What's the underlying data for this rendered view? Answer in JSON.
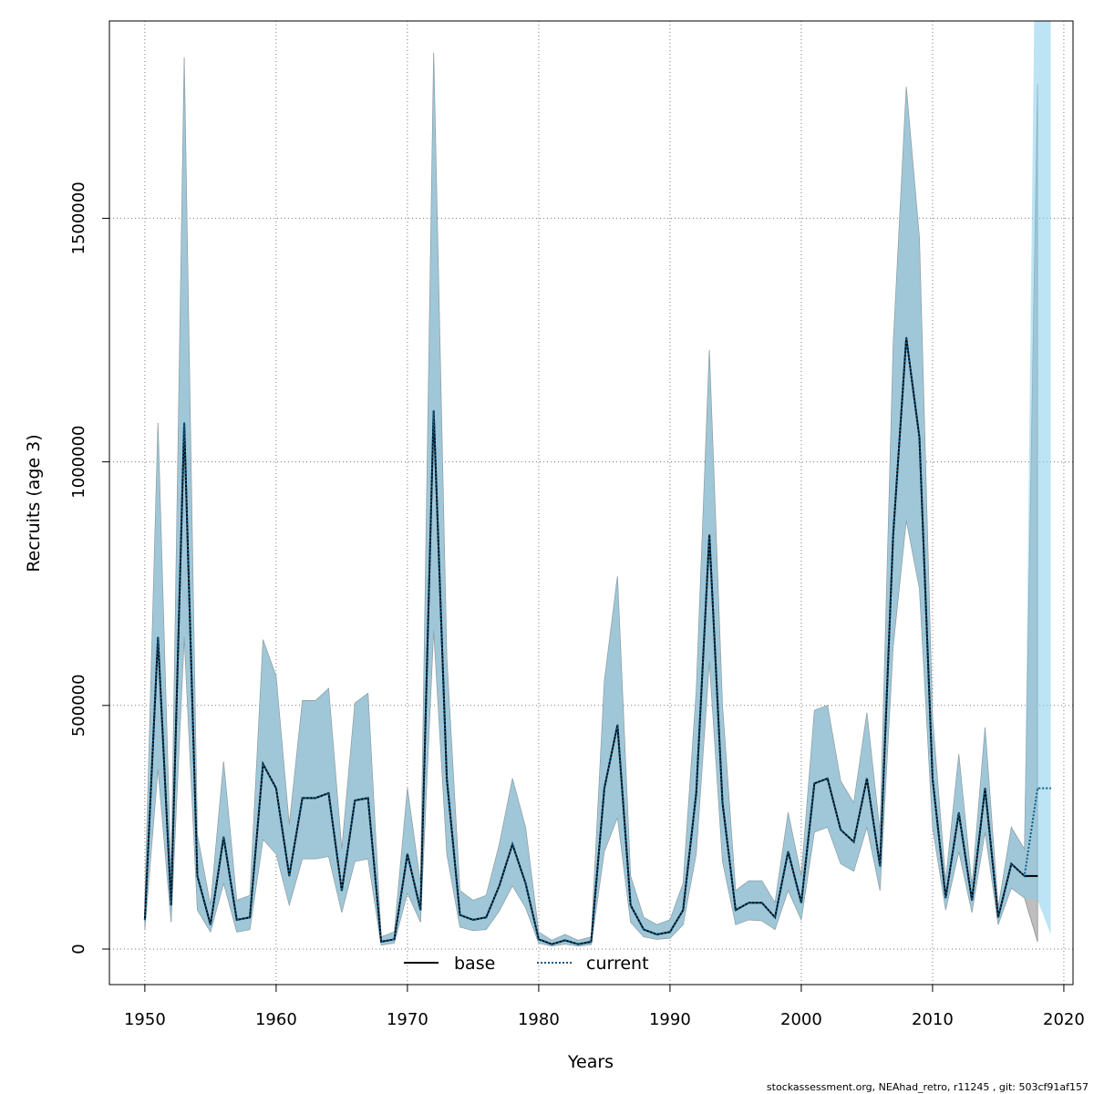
{
  "chart_data": {
    "type": "area",
    "xlabel": "Years",
    "ylabel": "Recruits (age 3)",
    "xlim": [
      1947.3,
      2020.7
    ],
    "ylim": [
      -73000,
      1905000
    ],
    "xticks": [
      1950,
      1960,
      1970,
      1980,
      1990,
      2000,
      2010,
      2020
    ],
    "yticks": [
      0,
      500000,
      1000000,
      1500000
    ],
    "ytick_labels": [
      "0",
      "500000",
      "1000000",
      "1500000"
    ],
    "grid": true,
    "legend_position": "bottom-center",
    "colors": {
      "base_band": "#bebebe",
      "current_band": "#87ceeb",
      "overlap": "#a5c5d4",
      "base_line": "#000000",
      "current_line": "#0b5a8a"
    },
    "series": [
      {
        "name": "base",
        "style": "solid",
        "years": [
          1950,
          1951,
          1952,
          1953,
          1954,
          1955,
          1956,
          1957,
          1958,
          1959,
          1960,
          1961,
          1962,
          1963,
          1964,
          1965,
          1966,
          1967,
          1968,
          1969,
          1970,
          1971,
          1972,
          1973,
          1974,
          1975,
          1976,
          1977,
          1978,
          1979,
          1980,
          1981,
          1982,
          1983,
          1984,
          1985,
          1986,
          1987,
          1988,
          1989,
          1990,
          1991,
          1992,
          1993,
          1994,
          1995,
          1996,
          1997,
          1998,
          1999,
          2000,
          2001,
          2002,
          2003,
          2004,
          2005,
          2006,
          2007,
          2008,
          2009,
          2010,
          2011,
          2012,
          2013,
          2014,
          2015,
          2016,
          2017,
          2018
        ],
        "values": [
          60000,
          640000,
          90000,
          1080000,
          150000,
          50000,
          230000,
          60000,
          65000,
          380000,
          330000,
          150000,
          310000,
          310000,
          320000,
          120000,
          305000,
          310000,
          15000,
          20000,
          195000,
          80000,
          1105000,
          350000,
          70000,
          60000,
          65000,
          130000,
          215000,
          135000,
          20000,
          10000,
          18000,
          10000,
          15000,
          330000,
          460000,
          90000,
          40000,
          30000,
          35000,
          80000,
          320000,
          850000,
          300000,
          80000,
          95000,
          95000,
          65000,
          200000,
          95000,
          340000,
          350000,
          245000,
          220000,
          350000,
          170000,
          850000,
          1255000,
          1050000,
          350000,
          105000,
          280000,
          100000,
          330000,
          65000,
          175000,
          150000,
          150000
        ],
        "lower": [
          40000,
          370000,
          55000,
          640000,
          80000,
          35000,
          135000,
          35000,
          40000,
          225000,
          195000,
          90000,
          185000,
          185000,
          190000,
          75000,
          180000,
          185000,
          8000,
          12000,
          115000,
          55000,
          655000,
          195000,
          45000,
          38000,
          40000,
          78000,
          130000,
          85000,
          12000,
          6000,
          10000,
          6000,
          9000,
          200000,
          270000,
          55000,
          25000,
          20000,
          22000,
          50000,
          195000,
          590000,
          180000,
          50000,
          60000,
          58000,
          40000,
          120000,
          60000,
          240000,
          250000,
          175000,
          160000,
          250000,
          120000,
          620000,
          880000,
          740000,
          250000,
          80000,
          200000,
          75000,
          240000,
          50000,
          125000,
          105000,
          15000
        ],
        "upper": [
          100000,
          1080000,
          150000,
          1830000,
          235000,
          90000,
          385000,
          100000,
          110000,
          635000,
          560000,
          255000,
          510000,
          510000,
          535000,
          205000,
          505000,
          525000,
          25000,
          35000,
          330000,
          135000,
          1840000,
          600000,
          120000,
          100000,
          110000,
          215000,
          350000,
          250000,
          35000,
          18000,
          30000,
          18000,
          25000,
          550000,
          765000,
          150000,
          65000,
          50000,
          60000,
          135000,
          530000,
          1230000,
          500000,
          120000,
          140000,
          140000,
          95000,
          280000,
          150000,
          490000,
          500000,
          345000,
          300000,
          485000,
          240000,
          1240000,
          1770000,
          1460000,
          475000,
          140000,
          400000,
          130000,
          455000,
          85000,
          250000,
          205000,
          1775000
        ]
      },
      {
        "name": "current",
        "style": "dotted",
        "years": [
          1950,
          1951,
          1952,
          1953,
          1954,
          1955,
          1956,
          1957,
          1958,
          1959,
          1960,
          1961,
          1962,
          1963,
          1964,
          1965,
          1966,
          1967,
          1968,
          1969,
          1970,
          1971,
          1972,
          1973,
          1974,
          1975,
          1976,
          1977,
          1978,
          1979,
          1980,
          1981,
          1982,
          1983,
          1984,
          1985,
          1986,
          1987,
          1988,
          1989,
          1990,
          1991,
          1992,
          1993,
          1994,
          1995,
          1996,
          1997,
          1998,
          1999,
          2000,
          2001,
          2002,
          2003,
          2004,
          2005,
          2006,
          2007,
          2008,
          2009,
          2010,
          2011,
          2012,
          2013,
          2014,
          2015,
          2016,
          2017,
          2018,
          2019
        ],
        "values": [
          60000,
          640000,
          90000,
          1080000,
          150000,
          50000,
          230000,
          60000,
          65000,
          380000,
          330000,
          150000,
          310000,
          310000,
          320000,
          120000,
          305000,
          310000,
          15000,
          20000,
          195000,
          80000,
          1105000,
          350000,
          70000,
          60000,
          65000,
          130000,
          215000,
          135000,
          20000,
          10000,
          18000,
          10000,
          15000,
          330000,
          460000,
          90000,
          40000,
          30000,
          35000,
          80000,
          320000,
          850000,
          300000,
          80000,
          95000,
          95000,
          65000,
          200000,
          95000,
          340000,
          350000,
          245000,
          220000,
          350000,
          170000,
          850000,
          1255000,
          1050000,
          350000,
          105000,
          280000,
          100000,
          330000,
          65000,
          175000,
          150000,
          330000,
          330000
        ],
        "lower": [
          40000,
          370000,
          55000,
          640000,
          80000,
          35000,
          135000,
          35000,
          40000,
          225000,
          195000,
          90000,
          185000,
          185000,
          190000,
          75000,
          180000,
          185000,
          8000,
          12000,
          115000,
          55000,
          655000,
          195000,
          45000,
          38000,
          40000,
          78000,
          130000,
          85000,
          12000,
          6000,
          10000,
          6000,
          9000,
          200000,
          270000,
          55000,
          25000,
          20000,
          22000,
          50000,
          195000,
          590000,
          180000,
          50000,
          60000,
          58000,
          40000,
          120000,
          60000,
          240000,
          250000,
          175000,
          160000,
          250000,
          120000,
          620000,
          880000,
          740000,
          250000,
          80000,
          200000,
          75000,
          240000,
          50000,
          125000,
          105000,
          100000,
          30000
        ],
        "upper": [
          100000,
          1080000,
          150000,
          1830000,
          235000,
          90000,
          385000,
          100000,
          110000,
          635000,
          560000,
          255000,
          510000,
          510000,
          535000,
          205000,
          505000,
          525000,
          25000,
          35000,
          330000,
          135000,
          1840000,
          600000,
          120000,
          100000,
          110000,
          215000,
          350000,
          250000,
          35000,
          18000,
          30000,
          18000,
          25000,
          550000,
          765000,
          150000,
          65000,
          50000,
          60000,
          135000,
          530000,
          1230000,
          500000,
          120000,
          140000,
          140000,
          95000,
          280000,
          150000,
          490000,
          500000,
          345000,
          300000,
          485000,
          240000,
          1240000,
          1770000,
          1460000,
          475000,
          140000,
          400000,
          130000,
          455000,
          85000,
          250000,
          205000,
          2500000,
          2500000
        ]
      }
    ]
  },
  "footer": "stockassessment.org, NEAhad_retro, r11245 , git: 503cf91af157"
}
